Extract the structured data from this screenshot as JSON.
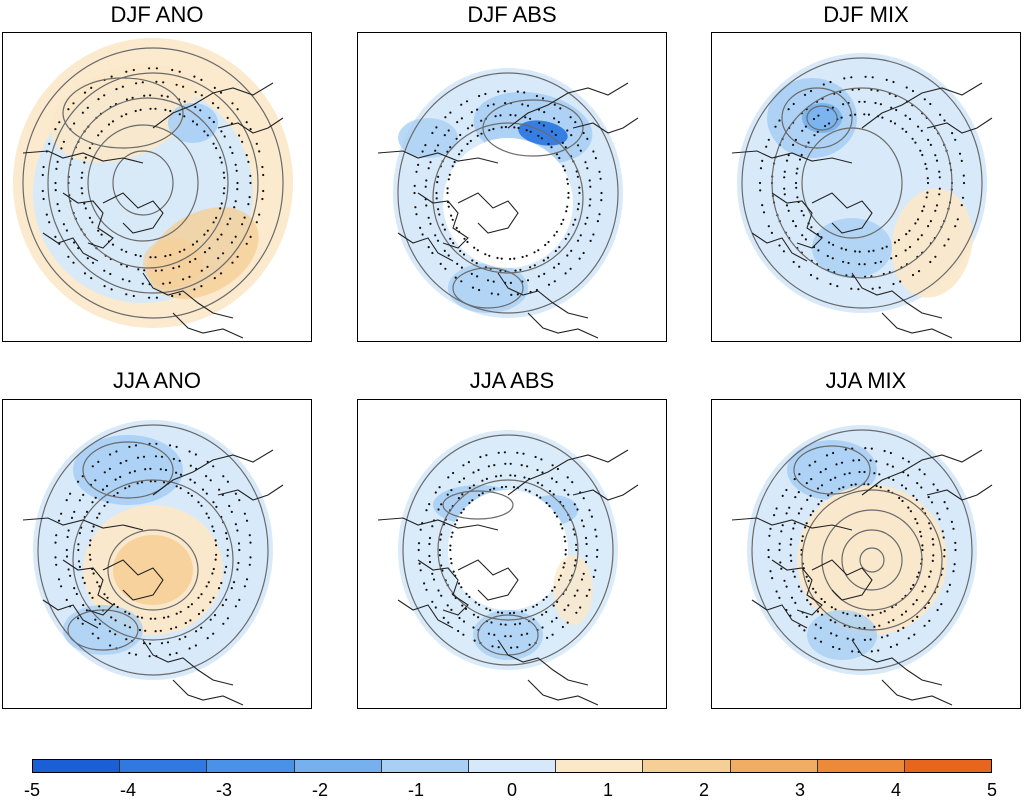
{
  "panels": [
    {
      "title": "DJF ANO",
      "pattern": "ano_djf"
    },
    {
      "title": "DJF ABS",
      "pattern": "abs_djf"
    },
    {
      "title": "DJF MIX",
      "pattern": "mix_djf"
    },
    {
      "title": "JJA ANO",
      "pattern": "ano_jja"
    },
    {
      "title": "JJA ABS",
      "pattern": "abs_jja"
    },
    {
      "title": "JJA MIX",
      "pattern": "mix_jja"
    }
  ],
  "colorbar": {
    "min": -5,
    "max": 5,
    "ticks": [
      "-5",
      "-4",
      "-3",
      "-2",
      "-1",
      "0",
      "1",
      "2",
      "3",
      "4",
      "5"
    ],
    "colors": [
      "#1a5fd6",
      "#2f79e0",
      "#4a92e8",
      "#76b0ee",
      "#a9cff4",
      "#d6e9fa",
      "#fbe8c9",
      "#f6cf97",
      "#f1ad63",
      "#ec8a3a",
      "#e8651e"
    ]
  }
}
